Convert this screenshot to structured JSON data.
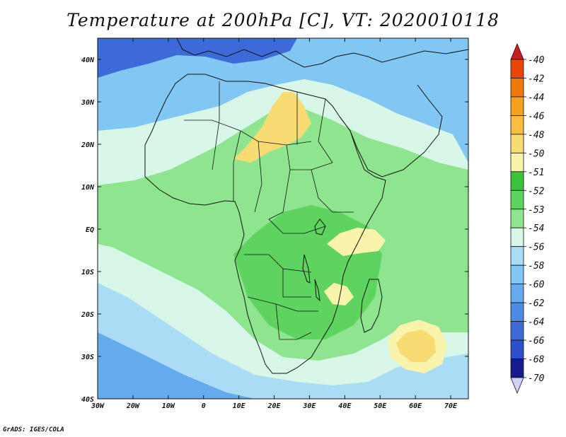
{
  "title": "Temperature at 200hPa [C], VT: 2020010118",
  "credit": "GrADS: IGES/COLA",
  "map": {
    "lon_range": [
      -30,
      75
    ],
    "lat_range": [
      -40,
      45
    ],
    "lat_ticks": [
      {
        "value": 40,
        "label": "40N"
      },
      {
        "value": 30,
        "label": "30N"
      },
      {
        "value": 20,
        "label": "20N"
      },
      {
        "value": 10,
        "label": "10N"
      },
      {
        "value": 0,
        "label": "EQ"
      },
      {
        "value": -10,
        "label": "10S"
      },
      {
        "value": -20,
        "label": "20S"
      },
      {
        "value": -30,
        "label": "30S"
      },
      {
        "value": -40,
        "label": "40S"
      }
    ],
    "lon_ticks": [
      {
        "value": -30,
        "label": "30W"
      },
      {
        "value": -20,
        "label": "20W"
      },
      {
        "value": -10,
        "label": "10W"
      },
      {
        "value": 0,
        "label": "0"
      },
      {
        "value": 10,
        "label": "10E"
      },
      {
        "value": 20,
        "label": "20E"
      },
      {
        "value": 30,
        "label": "30E"
      },
      {
        "value": 40,
        "label": "40E"
      },
      {
        "value": 50,
        "label": "50E"
      },
      {
        "value": 60,
        "label": "60E"
      },
      {
        "value": 70,
        "label": "70E"
      }
    ]
  },
  "colorbar": {
    "levels": [
      "-40",
      "-42",
      "-44",
      "-46",
      "-48",
      "-50",
      "-51",
      "-52",
      "-53",
      "-54",
      "-56",
      "-58",
      "-60",
      "-62",
      "-64",
      "-66",
      "-68",
      "-70"
    ],
    "colors": [
      "#c81e1e",
      "#e8460a",
      "#f0780a",
      "#f5a01e",
      "#f8bd42",
      "#f7dc74",
      "#faf3ab",
      "#3cc33c",
      "#5fd35f",
      "#8fe48f",
      "#d8f7e8",
      "#aadcf5",
      "#82c6f3",
      "#64aaee",
      "#4b8be3",
      "#3c6ad8",
      "#2e4fca",
      "#151b8a",
      "#d0d0f8"
    ],
    "top_color": "#c81e1e",
    "bottom_color": "#d0d0f8"
  },
  "field_colors": {
    "very_cold": "#3c6ad8",
    "cold": "#64aaee",
    "cool": "#82c6f3",
    "mild_blue": "#aadcf5",
    "pale": "#d8f7e8",
    "light_green": "#8fe48f",
    "green": "#5fd35f",
    "dark_green": "#3cc33c",
    "cream": "#faf3ab",
    "yellow": "#f7dc74",
    "tan": "#f8bd42"
  }
}
